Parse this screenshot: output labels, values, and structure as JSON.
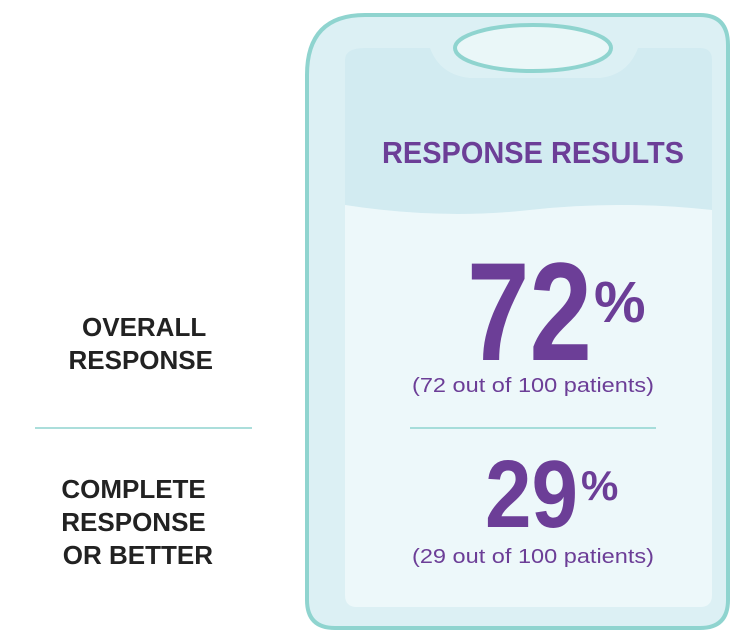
{
  "title": "RESPONSE RESULTS",
  "rows": [
    {
      "label_lines": [
        "OVERALL",
        "RESPONSE"
      ],
      "value": "72",
      "unit": "%",
      "note": "(72 out of 100 patients)"
    },
    {
      "label_lines": [
        "COMPLETE",
        "RESPONSE",
        "OR BETTER"
      ],
      "value": "29",
      "unit": "%",
      "note": "(29 out of 100 patients)"
    }
  ]
}
